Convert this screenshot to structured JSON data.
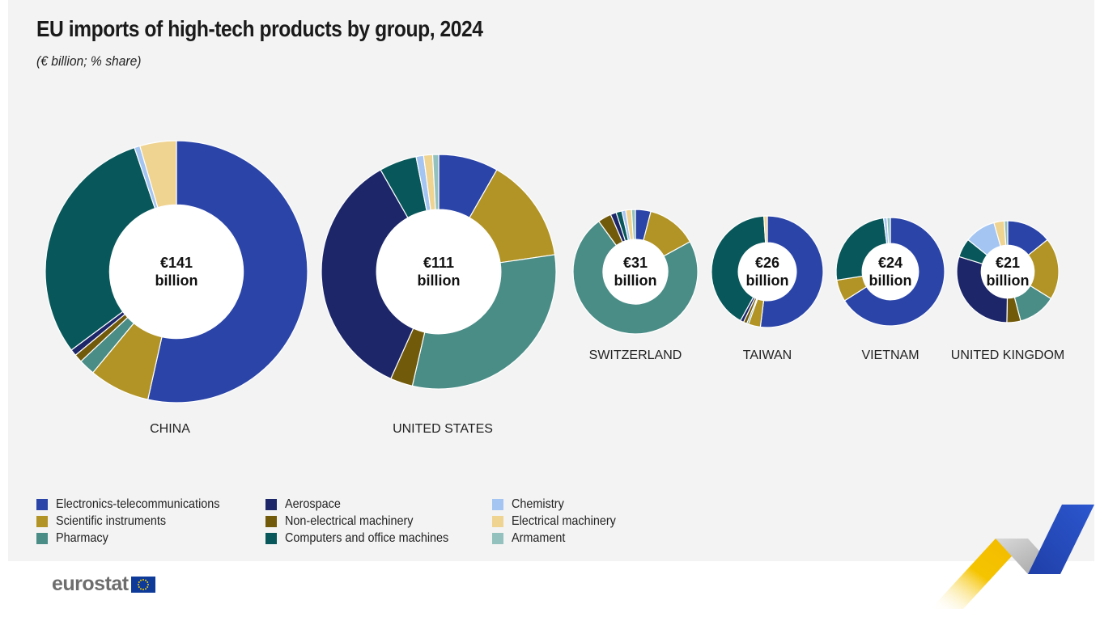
{
  "title": "EU imports of high-tech products by group, 2024",
  "subtitle": "(€ billion; % share)",
  "logo_text": "eurostat",
  "legend": [
    {
      "key": "electronics",
      "label": "Electronics-telecommunications",
      "color": "#2b44a8"
    },
    {
      "key": "scientific",
      "label": "Scientific instruments",
      "color": "#b19425"
    },
    {
      "key": "pharmacy",
      "label": "Pharmacy",
      "color": "#4a8c86"
    },
    {
      "key": "aerospace",
      "label": "Aerospace",
      "color": "#1c2669"
    },
    {
      "key": "nonelectrical",
      "label": "Non-electrical machinery",
      "color": "#725a0b"
    },
    {
      "key": "computers",
      "label": "Computers and office machines",
      "color": "#08575a"
    },
    {
      "key": "chemistry",
      "label": "Chemistry",
      "color": "#a4c5f2"
    },
    {
      "key": "electrical",
      "label": "Electrical machinery",
      "color": "#efd391"
    },
    {
      "key": "armament",
      "label": "Armament",
      "color": "#93c1bd"
    }
  ],
  "chart_data": {
    "type": "pie",
    "variant": "donut",
    "series_order": [
      "electronics",
      "scientific",
      "pharmacy",
      "nonelectrical",
      "aerospace",
      "computers",
      "chemistry",
      "electrical",
      "armament"
    ],
    "charts": [
      {
        "country": "CHINA",
        "total": 141,
        "total_label": "€141",
        "unit_label": "billion",
        "shares": {
          "electronics": 53.5,
          "scientific": 7.5,
          "pharmacy": 2.0,
          "aerospace": 0.8,
          "nonelectrical": 1.0,
          "computers": 30.0,
          "chemistry": 0.7,
          "electrical": 4.5,
          "armament": 0.0
        }
      },
      {
        "country": "UNITED STATES",
        "total": 111,
        "total_label": "€111",
        "unit_label": "billion",
        "shares": {
          "electronics": 8.0,
          "scientific": 14.0,
          "pharmacy": 30.0,
          "aerospace": 34.0,
          "nonelectrical": 3.0,
          "computers": 5.0,
          "chemistry": 1.0,
          "electrical": 1.2,
          "armament": 0.8
        }
      },
      {
        "country": "SWITZERLAND",
        "total": 31,
        "total_label": "€31",
        "unit_label": "billion",
        "shares": {
          "electronics": 4.0,
          "scientific": 13.0,
          "pharmacy": 73.0,
          "aerospace": 1.5,
          "nonelectrical": 3.5,
          "computers": 1.5,
          "chemistry": 1.0,
          "electrical": 1.5,
          "armament": 1.0
        }
      },
      {
        "country": "TAIWAN",
        "total": 26,
        "total_label": "€26",
        "unit_label": "billion",
        "shares": {
          "electronics": 52.0,
          "scientific": 3.5,
          "pharmacy": 0.5,
          "aerospace": 1.0,
          "nonelectrical": 1.0,
          "computers": 41.0,
          "chemistry": 0.0,
          "electrical": 1.0,
          "armament": 0.0
        }
      },
      {
        "country": "VIETNAM",
        "total": 24,
        "total_label": "€24",
        "unit_label": "billion",
        "shares": {
          "electronics": 66.0,
          "scientific": 6.5,
          "pharmacy": 0.0,
          "aerospace": 0.0,
          "nonelectrical": 0.0,
          "computers": 25.5,
          "chemistry": 1.0,
          "electrical": 0.0,
          "armament": 1.0
        }
      },
      {
        "country": "UNITED KINGDOM",
        "total": 21,
        "total_label": "€21",
        "unit_label": "billion",
        "shares": {
          "electronics": 13.0,
          "scientific": 18.0,
          "pharmacy": 11.0,
          "aerospace": 27.0,
          "nonelectrical": 4.0,
          "computers": 5.5,
          "chemistry": 9.0,
          "electrical": 3.0,
          "armament": 1.0
        }
      }
    ]
  }
}
